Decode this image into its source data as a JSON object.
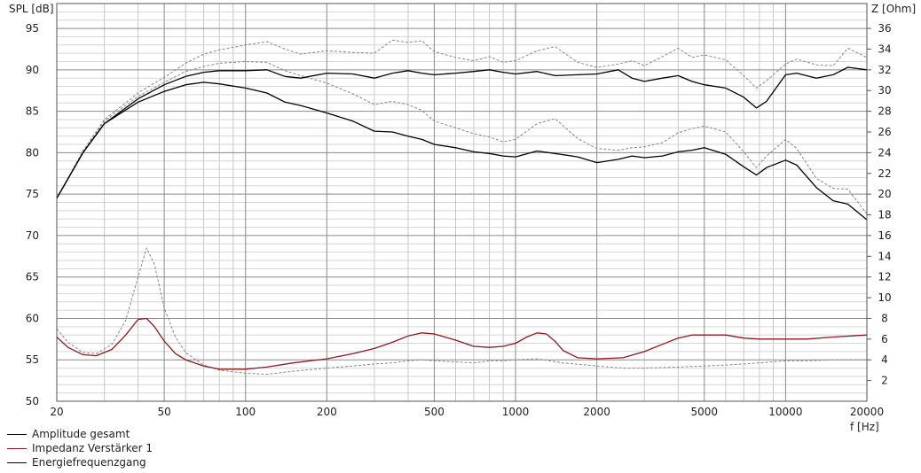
{
  "chart_data": {
    "type": "line",
    "xlabel": "f [Hz]",
    "ylabel_left": "SPL [dB]",
    "ylabel_right": "Z [Ohm]",
    "xscale": "log",
    "xlim": [
      20,
      20000
    ],
    "ylim_left": [
      50,
      98
    ],
    "ylim_right": [
      0,
      38.4
    ],
    "grid": true,
    "legend_position": "bottom-left",
    "x_ticks": [
      20,
      50,
      100,
      200,
      500,
      1000,
      2000,
      5000,
      10000,
      20000
    ],
    "x_tick_labels": [
      "20",
      "50",
      "100",
      "200",
      "500",
      "1000",
      "2000",
      "5000",
      "10000",
      "20000"
    ],
    "y_left_ticks": [
      50,
      55,
      60,
      65,
      70,
      75,
      80,
      85,
      90,
      95
    ],
    "y_left_tick_labels": [
      "50",
      "55",
      "60",
      "65",
      "70",
      "75",
      "80",
      "85",
      "90",
      "95"
    ],
    "y_right_ticks": [
      2,
      4,
      6,
      8,
      10,
      12,
      14,
      16,
      18,
      20,
      22,
      24,
      26,
      28,
      30,
      32,
      34,
      36
    ],
    "y_right_tick_labels": [
      "2",
      "4",
      "6",
      "8",
      "10",
      "12",
      "14",
      "16",
      "18",
      "20",
      "22",
      "24",
      "26",
      "28",
      "30",
      "32",
      "34",
      "36"
    ],
    "series": [
      {
        "name": "Amplitude gesamt",
        "color": "#000000",
        "dash": "solid",
        "axis": "left",
        "x": [
          20,
          25,
          30,
          40,
          50,
          60,
          70,
          80,
          100,
          120,
          140,
          160,
          200,
          250,
          300,
          350,
          400,
          450,
          500,
          600,
          700,
          800,
          900,
          1000,
          1200,
          1400,
          1700,
          2000,
          2400,
          2700,
          3000,
          3500,
          4000,
          4500,
          5000,
          6000,
          7000,
          7800,
          8500,
          10000,
          11000,
          13000,
          15000,
          17000,
          20000
        ],
        "y": [
          74.5,
          80,
          83.5,
          86.5,
          88.2,
          89.2,
          89.7,
          89.9,
          89.9,
          90.0,
          89.2,
          89.0,
          89.6,
          89.5,
          89.0,
          89.6,
          89.9,
          89.6,
          89.4,
          89.6,
          89.8,
          90.0,
          89.7,
          89.5,
          89.8,
          89.3,
          89.4,
          89.5,
          90.0,
          89.0,
          88.6,
          89.0,
          89.3,
          88.6,
          88.2,
          87.8,
          86.7,
          85.4,
          86.2,
          89.4,
          89.6,
          89.0,
          89.4,
          90.3,
          90.0
        ]
      },
      {
        "name": "Energiefrequenzgang",
        "color": "#000000",
        "dash": "solid",
        "axis": "left",
        "x": [
          20,
          25,
          30,
          40,
          50,
          60,
          70,
          80,
          100,
          120,
          140,
          160,
          200,
          250,
          300,
          350,
          400,
          450,
          500,
          600,
          700,
          800,
          900,
          1000,
          1200,
          1400,
          1700,
          2000,
          2400,
          2700,
          3000,
          3500,
          4000,
          4500,
          5000,
          6000,
          7000,
          7800,
          8500,
          10000,
          11000,
          13000,
          15000,
          17000,
          20000
        ],
        "y": [
          74.5,
          80,
          83.5,
          86.1,
          87.4,
          88.2,
          88.5,
          88.3,
          87.8,
          87.2,
          86.1,
          85.7,
          84.8,
          83.8,
          82.6,
          82.5,
          82.0,
          81.6,
          81.0,
          80.6,
          80.1,
          79.9,
          79.6,
          79.5,
          80.2,
          79.9,
          79.5,
          78.8,
          79.2,
          79.6,
          79.4,
          79.6,
          80.1,
          80.3,
          80.6,
          79.8,
          78.3,
          77.3,
          78.2,
          79.1,
          78.5,
          75.8,
          74.2,
          73.8,
          71.9
        ]
      },
      {
        "name": "Impedanz Verstärker 1",
        "color": "#8b1a1a",
        "dash": "solid",
        "axis": "right",
        "x": [
          20,
          22,
          25,
          28,
          32,
          36,
          40,
          43,
          46,
          50,
          55,
          60,
          70,
          80,
          100,
          120,
          150,
          200,
          250,
          300,
          350,
          400,
          450,
          500,
          600,
          700,
          800,
          900,
          1000,
          1100,
          1200,
          1300,
          1400,
          1500,
          1700,
          2000,
          2500,
          3000,
          3500,
          4000,
          4500,
          5000,
          6000,
          7000,
          8000,
          10000,
          12000,
          15000,
          20000
        ],
        "y": [
          6.2,
          5.2,
          4.5,
          4.4,
          5.0,
          6.4,
          7.9,
          8.0,
          7.2,
          5.8,
          4.6,
          4.0,
          3.4,
          3.1,
          3.1,
          3.3,
          3.7,
          4.1,
          4.6,
          5.1,
          5.7,
          6.3,
          6.6,
          6.5,
          5.9,
          5.3,
          5.2,
          5.3,
          5.6,
          6.2,
          6.6,
          6.5,
          5.8,
          4.9,
          4.2,
          4.1,
          4.2,
          4.8,
          5.5,
          6.1,
          6.4,
          6.4,
          6.4,
          6.1,
          6.0,
          6.0,
          6.0,
          6.2,
          6.4
        ]
      },
      {
        "name": "",
        "color": "#888888",
        "dash": "dashed",
        "axis": "left",
        "x": [
          20,
          25,
          30,
          40,
          50,
          60,
          70,
          80,
          100,
          120,
          140,
          160,
          200,
          250,
          300,
          350,
          400,
          450,
          500,
          600,
          700,
          800,
          900,
          1000,
          1200,
          1400,
          1700,
          2000,
          2400,
          2700,
          3000,
          3500,
          4000,
          4500,
          5000,
          6000,
          7000,
          7800,
          8500,
          10000,
          11000,
          13000,
          15000,
          17000,
          20000
        ],
        "y": [
          74.5,
          80.2,
          84,
          87.2,
          89.1,
          90.8,
          91.9,
          92.4,
          93.0,
          93.4,
          92.5,
          91.9,
          92.3,
          92.1,
          92.0,
          93.6,
          93.3,
          93.5,
          92.2,
          91.5,
          91.1,
          91.6,
          90.9,
          91.1,
          92.3,
          92.8,
          90.9,
          90.3,
          90.7,
          91.1,
          90.5,
          91.6,
          92.6,
          91.5,
          91.8,
          91.2,
          89.3,
          87.8,
          88.7,
          90.7,
          91.3,
          90.6,
          90.5,
          92.6,
          91.5
        ]
      },
      {
        "name": "",
        "color": "#888888",
        "dash": "dashed",
        "axis": "left",
        "x": [
          20,
          25,
          30,
          40,
          50,
          60,
          70,
          80,
          100,
          120,
          140,
          160,
          200,
          250,
          300,
          350,
          400,
          450,
          500,
          600,
          700,
          800,
          900,
          1000,
          1200,
          1400,
          1700,
          2000,
          2400,
          2700,
          3000,
          3500,
          4000,
          4500,
          5000,
          6000,
          7000,
          7800,
          8500,
          10000,
          11000,
          13000,
          15000,
          17000,
          20000
        ],
        "y": [
          74.5,
          80.1,
          83.8,
          86.8,
          88.5,
          89.8,
          90.4,
          90.8,
          91.0,
          90.9,
          89.9,
          89.3,
          88.4,
          87.1,
          85.8,
          86.2,
          85.8,
          85.1,
          83.8,
          83.0,
          82.3,
          81.9,
          81.3,
          81.6,
          83.5,
          84.1,
          81.7,
          80.5,
          80.3,
          80.6,
          80.7,
          81.2,
          82.4,
          82.9,
          83.2,
          82.5,
          80.1,
          78.2,
          79.6,
          81.6,
          80.5,
          76.9,
          75.7,
          75.6,
          72.6
        ]
      },
      {
        "name": "",
        "color": "#888888",
        "dash": "dashed",
        "axis": "right",
        "x": [
          20,
          22,
          25,
          28,
          32,
          36,
          40,
          43,
          46,
          50,
          55,
          60,
          70,
          80,
          100,
          120,
          150,
          200,
          250,
          300,
          350,
          400,
          450,
          500,
          600,
          700,
          800,
          900,
          1000,
          1200,
          1500,
          2000,
          2500,
          3000,
          4000,
          5000,
          6000,
          7000,
          8000,
          10000,
          12000,
          15000,
          20000
        ],
        "y": [
          7.0,
          5.7,
          4.7,
          4.6,
          5.5,
          7.8,
          12.0,
          14.8,
          13.2,
          9.0,
          6.2,
          4.7,
          3.5,
          3.0,
          2.7,
          2.6,
          2.9,
          3.2,
          3.4,
          3.6,
          3.7,
          3.9,
          4.0,
          3.9,
          3.8,
          3.7,
          3.9,
          3.9,
          4.0,
          4.1,
          3.7,
          3.4,
          3.2,
          3.2,
          3.3,
          3.4,
          3.5,
          3.6,
          3.7,
          3.9,
          3.9,
          4.0,
          4.0
        ]
      }
    ]
  }
}
